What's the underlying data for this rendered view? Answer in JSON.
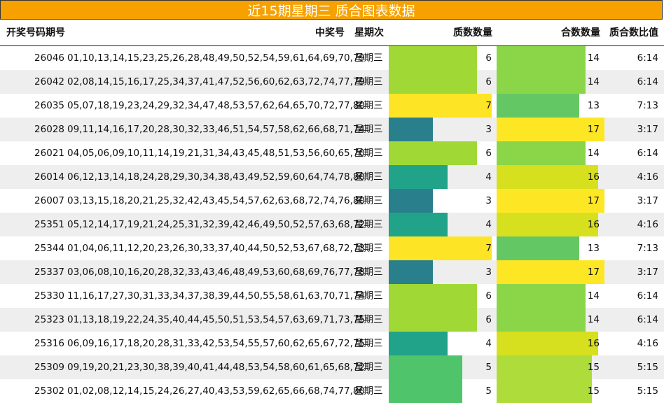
{
  "title": "近15期星期三 质合图表数据",
  "headers": {
    "issue": "开奖号码期号",
    "numbers": "中奖号",
    "weekday": "星期次",
    "prime_count": "质数数量",
    "composite_count": "合数数量",
    "ratio": "质合数比值"
  },
  "colors": {
    "title_bg": "#f7a100",
    "prime_3": "#2a7f8d",
    "prime_4": "#21a38a",
    "prime_5": "#4fc46a",
    "prime_6": "#a0d935",
    "prime_7": "#fde425",
    "comp_13": "#63c863",
    "comp_14": "#8ad648",
    "comp_15": "#aedd3b",
    "comp_16": "#d6e01f",
    "comp_17": "#fde725"
  },
  "scale_max": 20,
  "rows": [
    {
      "issue": "26046",
      "numbers": "01,10,13,14,15,23,25,26,28,48,49,50,52,54,59,61,64,69,70,79",
      "weekday": "星期三",
      "prime": 6,
      "composite": 14,
      "ratio": "6:14"
    },
    {
      "issue": "26042",
      "numbers": "02,08,14,15,16,17,25,34,37,41,47,52,56,60,62,63,72,74,77,79",
      "weekday": "星期三",
      "prime": 6,
      "composite": 14,
      "ratio": "6:14"
    },
    {
      "issue": "26035",
      "numbers": "05,07,18,19,23,24,29,32,34,47,48,53,57,62,64,65,70,72,77,80",
      "weekday": "星期三",
      "prime": 7,
      "composite": 13,
      "ratio": "7:13"
    },
    {
      "issue": "26028",
      "numbers": "09,11,14,16,17,20,28,30,32,33,46,51,54,57,58,62,66,68,71,74",
      "weekday": "星期三",
      "prime": 3,
      "composite": 17,
      "ratio": "3:17"
    },
    {
      "issue": "26021",
      "numbers": "04,05,06,09,10,11,14,19,21,31,34,43,45,48,51,53,56,60,65,70",
      "weekday": "星期三",
      "prime": 6,
      "composite": 14,
      "ratio": "6:14"
    },
    {
      "issue": "26014",
      "numbers": "06,12,13,14,18,24,28,29,30,34,38,43,49,52,59,60,64,74,78,80",
      "weekday": "星期三",
      "prime": 4,
      "composite": 16,
      "ratio": "4:16"
    },
    {
      "issue": "26007",
      "numbers": "03,13,15,18,20,21,25,32,42,43,45,54,57,62,63,68,72,74,76,80",
      "weekday": "星期三",
      "prime": 3,
      "composite": 17,
      "ratio": "3:17"
    },
    {
      "issue": "25351",
      "numbers": "05,12,14,17,19,21,24,25,31,32,39,42,46,49,50,52,57,63,68,72",
      "weekday": "星期三",
      "prime": 4,
      "composite": 16,
      "ratio": "4:16"
    },
    {
      "issue": "25344",
      "numbers": "01,04,06,11,12,20,23,26,30,33,37,40,44,50,52,53,67,68,72,73",
      "weekday": "星期三",
      "prime": 7,
      "composite": 13,
      "ratio": "7:13"
    },
    {
      "issue": "25337",
      "numbers": "03,06,08,10,16,20,28,32,33,43,46,48,49,53,60,68,69,76,77,78",
      "weekday": "星期三",
      "prime": 3,
      "composite": 17,
      "ratio": "3:17"
    },
    {
      "issue": "25330",
      "numbers": "11,16,17,27,30,31,33,34,37,38,39,44,50,55,58,61,63,70,71,74",
      "weekday": "星期三",
      "prime": 6,
      "composite": 14,
      "ratio": "6:14"
    },
    {
      "issue": "25323",
      "numbers": "01,13,18,19,22,24,35,40,44,45,50,51,53,54,57,63,69,71,73,75",
      "weekday": "星期三",
      "prime": 6,
      "composite": 14,
      "ratio": "6:14"
    },
    {
      "issue": "25316",
      "numbers": "06,09,16,17,18,20,28,31,33,42,53,54,55,57,60,62,65,67,72,75",
      "weekday": "星期三",
      "prime": 4,
      "composite": 16,
      "ratio": "4:16"
    },
    {
      "issue": "25309",
      "numbers": "09,19,20,21,23,30,38,39,40,41,44,48,53,54,58,60,61,65,68,72",
      "weekday": "星期三",
      "prime": 5,
      "composite": 15,
      "ratio": "5:15"
    },
    {
      "issue": "25302",
      "numbers": "01,02,08,12,14,15,24,26,27,40,43,53,59,62,65,66,68,74,77,80",
      "weekday": "星期三",
      "prime": 5,
      "composite": 15,
      "ratio": "5:15"
    }
  ]
}
